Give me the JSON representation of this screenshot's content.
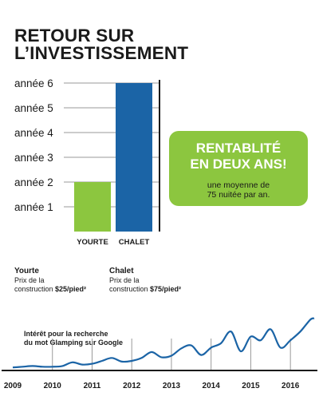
{
  "title": {
    "line1": "RETOUR SUR",
    "line2": "L’INVESTISSEMENT"
  },
  "chart_data": [
    {
      "type": "bar",
      "categories": [
        "YOURTE",
        "CHALET"
      ],
      "values": [
        2,
        6
      ],
      "y_tick_labels": [
        "année 1",
        "année 2",
        "année 3",
        "année 4",
        "année 5",
        "année 6"
      ],
      "ylim": [
        0,
        6
      ],
      "colors": [
        "#8cc63f",
        "#1b64a6"
      ],
      "grid": true
    },
    {
      "type": "line",
      "x": [
        2009.0,
        2009.25,
        2009.5,
        2009.75,
        2010.0,
        2010.25,
        2010.5,
        2010.75,
        2011.0,
        2011.25,
        2011.5,
        2011.75,
        2012.0,
        2012.25,
        2012.5,
        2012.75,
        2013.0,
        2013.25,
        2013.5,
        2013.75,
        2014.0,
        2014.25,
        2014.5,
        2014.75,
        2015.0,
        2015.25,
        2015.5,
        2015.75,
        2016.0,
        2016.25,
        2016.5,
        2016.6
      ],
      "y": [
        3,
        4,
        5,
        4,
        4,
        5,
        10,
        7,
        8,
        12,
        16,
        11,
        12,
        16,
        24,
        17,
        19,
        29,
        33,
        20,
        30,
        36,
        52,
        25,
        45,
        40,
        55,
        30,
        40,
        52,
        68,
        70
      ],
      "x_tick_labels": [
        "2009",
        "2010",
        "2011",
        "2012",
        "2013",
        "2014",
        "2015",
        "2016"
      ],
      "xlim": [
        2009,
        2016.6
      ],
      "ylim": [
        0,
        75
      ],
      "color": "#1b64a6"
    }
  ],
  "callout": {
    "headline_1": "RENTABLITÉ",
    "headline_2": "EN DEUX ANS!",
    "sub_1": "une moyenne de",
    "sub_2": "75 nuitée par an.",
    "color": "#8cc63f"
  },
  "costs": {
    "yourte": {
      "name": "Yourte",
      "line1": "Prix de la",
      "line2_prefix": "construction ",
      "price": "$25/pied²"
    },
    "chalet": {
      "name": "Chalet",
      "line1": "Prix de la",
      "line2_prefix": "construction ",
      "price": "$75/pied²"
    }
  },
  "trend_label": {
    "line1": "Intérêt pour la recherche",
    "line2": "du mot Glamping sur Google"
  }
}
